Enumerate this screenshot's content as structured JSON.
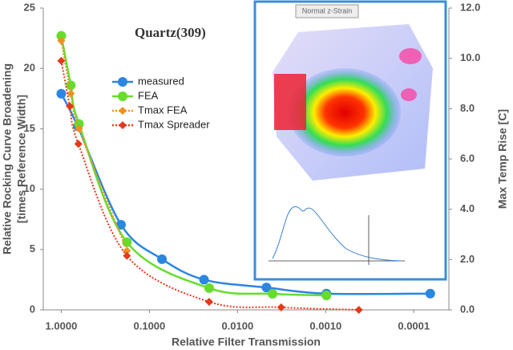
{
  "chart_data": {
    "type": "line",
    "title": "Quartz(309)",
    "xlabel": "Relative Filter Transmission",
    "ylabel": [
      "Relative Rocking Curve Broadening",
      "[times Reference Width]"
    ],
    "y2label": "Max Temp Rise [C]",
    "xscale": "log",
    "xlim": [
      1.6,
      4e-05
    ],
    "xticks": [
      {
        "value": 1,
        "label": "1.0000"
      },
      {
        "value": 0.1,
        "label": "0.1000"
      },
      {
        "value": 0.01,
        "label": "0.0100"
      },
      {
        "value": 0.001,
        "label": "0.0010"
      },
      {
        "value": 0.0001,
        "label": "0.0001"
      }
    ],
    "ylim": [
      0,
      25
    ],
    "yticks": [
      0,
      5,
      10,
      15,
      20,
      25
    ],
    "y2lim": [
      0,
      12
    ],
    "y2ticks": [
      {
        "value": 0,
        "label": "0.0"
      },
      {
        "value": 2,
        "label": "2.0"
      },
      {
        "value": 4,
        "label": "4.0"
      },
      {
        "value": 6,
        "label": "6.0"
      },
      {
        "value": 8,
        "label": "8.0"
      },
      {
        "value": 10,
        "label": "10.0"
      },
      {
        "value": 12,
        "label": "12.0"
      }
    ],
    "grid": false,
    "series": [
      {
        "name": "measured",
        "color": "#2b86e0",
        "marker": "circle",
        "line_style": "solid",
        "x": [
          1.0,
          0.65,
          0.21,
          0.072,
          0.024,
          0.0047,
          0.00098,
          6.5e-05
        ],
        "values": [
          17.9,
          15.2,
          7.05,
          4.2,
          2.5,
          1.85,
          1.35,
          1.35
        ]
      },
      {
        "name": "FEA",
        "color": "#66dd2e",
        "marker": "circle",
        "line_style": "solid",
        "x": [
          1.0,
          0.78,
          0.63,
          0.18,
          0.021,
          0.004,
          0.00098
        ],
        "values": [
          22.7,
          18.6,
          15.4,
          5.6,
          1.8,
          1.33,
          1.2
        ]
      },
      {
        "name": "Tmax FEA",
        "color": "#f0901e",
        "marker": "diamond",
        "line_style": "dotted",
        "axis": "y2",
        "x": [
          1.0,
          0.78,
          0.63,
          0.18
        ],
        "values": [
          10.7,
          8.6,
          7.2,
          2.35
        ]
      },
      {
        "name": "Tmax Spreader",
        "color": "#e4391b",
        "marker": "diamond",
        "line_style": "dotted",
        "axis": "y2",
        "x": [
          1.0,
          0.8,
          0.64,
          0.18,
          0.021,
          0.0032,
          0.00042
        ],
        "values": [
          9.9,
          8.1,
          6.6,
          2.15,
          0.32,
          0.1,
          0.0
        ]
      }
    ],
    "legend": "upper-left",
    "inset": {
      "title": "Normal z-Strain"
    }
  }
}
